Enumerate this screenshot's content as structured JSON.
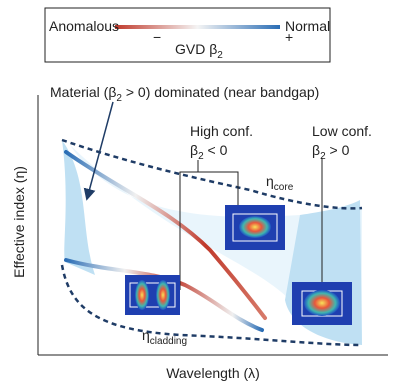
{
  "legend": {
    "left": "Anomalous",
    "right": "Normal",
    "minus": "−",
    "plus": "+",
    "label": {
      "text": "GVD β",
      "sub": "2"
    }
  },
  "annotations": {
    "material": {
      "text": "Material (β",
      "sub": "2",
      "rest": " > 0) dominated (near bandgap)"
    },
    "high": {
      "title": "High conf.",
      "text": "β",
      "sub": "2",
      "rest": " < 0"
    },
    "low": {
      "title": "Low conf.",
      "text": "β",
      "sub": "2",
      "rest": " > 0"
    },
    "core": {
      "text": "η",
      "sub": "core"
    },
    "cladding": {
      "text": "η",
      "sub": "cladding"
    }
  },
  "axes": {
    "y": "Effective index (η)",
    "x": "Wavelength (λ)"
  }
}
